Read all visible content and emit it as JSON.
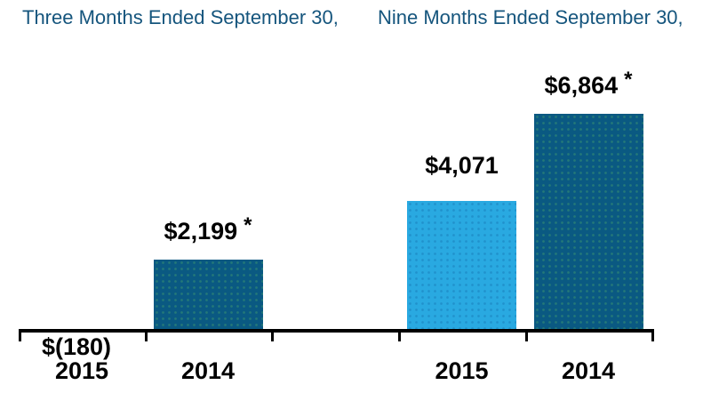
{
  "chart_data": {
    "type": "bar",
    "footnote_symbol": "*",
    "colors": {
      "dark": "#0a5982",
      "light": "#29a9e1",
      "title_text": "#15557d",
      "label_text": "#000000",
      "axis": "#000000"
    },
    "axis": {
      "baseline_value": 0,
      "ylim": [
        0,
        6900
      ],
      "gridlines": false,
      "legend": "none",
      "negative_labels_below_axis": true
    },
    "groups": [
      {
        "title": "Three Months Ended September 30,",
        "bars": [
          {
            "category": "2015",
            "value": -180,
            "label": "$(180)",
            "footnote": false,
            "color_key": "dark"
          },
          {
            "category": "2014",
            "value": 2199,
            "label": "$2,199",
            "footnote": true,
            "color_key": "dark"
          }
        ]
      },
      {
        "title": "Nine Months Ended September 30,",
        "bars": [
          {
            "category": "2015",
            "value": 4071,
            "label": "$4,071",
            "footnote": false,
            "color_key": "light"
          },
          {
            "category": "2014",
            "value": 6864,
            "label": "$6,864",
            "footnote": true,
            "color_key": "dark"
          }
        ]
      }
    ]
  }
}
